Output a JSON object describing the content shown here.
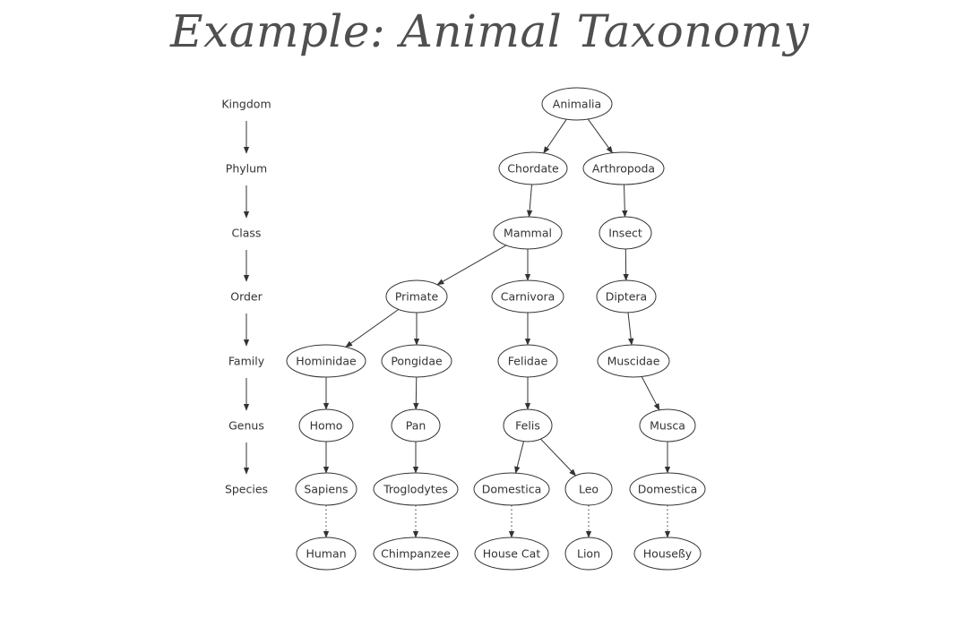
{
  "title": "Example: Animal Taxonomy",
  "ranks": [
    "Kingdom",
    "Phylum",
    "Class",
    "Order",
    "Family",
    "Genus",
    "Species"
  ],
  "nodes": {
    "animalia": "Animalia",
    "chordate": "Chordate",
    "arthropoda": "Arthropoda",
    "mammal": "Mammal",
    "insect": "Insect",
    "primate": "Primate",
    "carnivora": "Carnivora",
    "diptera": "Diptera",
    "hominidae": "Hominidae",
    "pongidae": "Pongidae",
    "felidae": "Felidae",
    "muscidae": "Muscidae",
    "homo": "Homo",
    "pan": "Pan",
    "felis": "Felis",
    "musca": "Musca",
    "sapiens": "Sapiens",
    "troglodytes": "Troglodytes",
    "domestica_cat": "Domestica",
    "leo": "Leo",
    "domestica_fly": "Domestica",
    "human": "Human",
    "chimpanzee": "Chimpanzee",
    "house_cat": "House Cat",
    "lion": "Lion",
    "housefly": "Houseßy"
  },
  "edges": [
    {
      "from": "animalia",
      "to": "chordate",
      "style": "solid"
    },
    {
      "from": "animalia",
      "to": "arthropoda",
      "style": "solid"
    },
    {
      "from": "chordate",
      "to": "mammal",
      "style": "solid"
    },
    {
      "from": "arthropoda",
      "to": "insect",
      "style": "solid"
    },
    {
      "from": "mammal",
      "to": "primate",
      "style": "solid"
    },
    {
      "from": "mammal",
      "to": "carnivora",
      "style": "solid"
    },
    {
      "from": "insect",
      "to": "diptera",
      "style": "solid"
    },
    {
      "from": "primate",
      "to": "hominidae",
      "style": "solid"
    },
    {
      "from": "primate",
      "to": "pongidae",
      "style": "solid"
    },
    {
      "from": "carnivora",
      "to": "felidae",
      "style": "solid"
    },
    {
      "from": "diptera",
      "to": "muscidae",
      "style": "solid"
    },
    {
      "from": "hominidae",
      "to": "homo",
      "style": "solid"
    },
    {
      "from": "pongidae",
      "to": "pan",
      "style": "solid"
    },
    {
      "from": "felidae",
      "to": "felis",
      "style": "solid"
    },
    {
      "from": "muscidae",
      "to": "musca",
      "style": "solid"
    },
    {
      "from": "homo",
      "to": "sapiens",
      "style": "solid"
    },
    {
      "from": "pan",
      "to": "troglodytes",
      "style": "solid"
    },
    {
      "from": "felis",
      "to": "domestica_cat",
      "style": "solid"
    },
    {
      "from": "felis",
      "to": "leo",
      "style": "solid"
    },
    {
      "from": "musca",
      "to": "domestica_fly",
      "style": "solid"
    },
    {
      "from": "sapiens",
      "to": "human",
      "style": "dotted"
    },
    {
      "from": "troglodytes",
      "to": "chimpanzee",
      "style": "dotted"
    },
    {
      "from": "domestica_cat",
      "to": "house_cat",
      "style": "dotted"
    },
    {
      "from": "leo",
      "to": "lion",
      "style": "dotted"
    },
    {
      "from": "domestica_fly",
      "to": "housefly",
      "style": "dotted"
    }
  ]
}
